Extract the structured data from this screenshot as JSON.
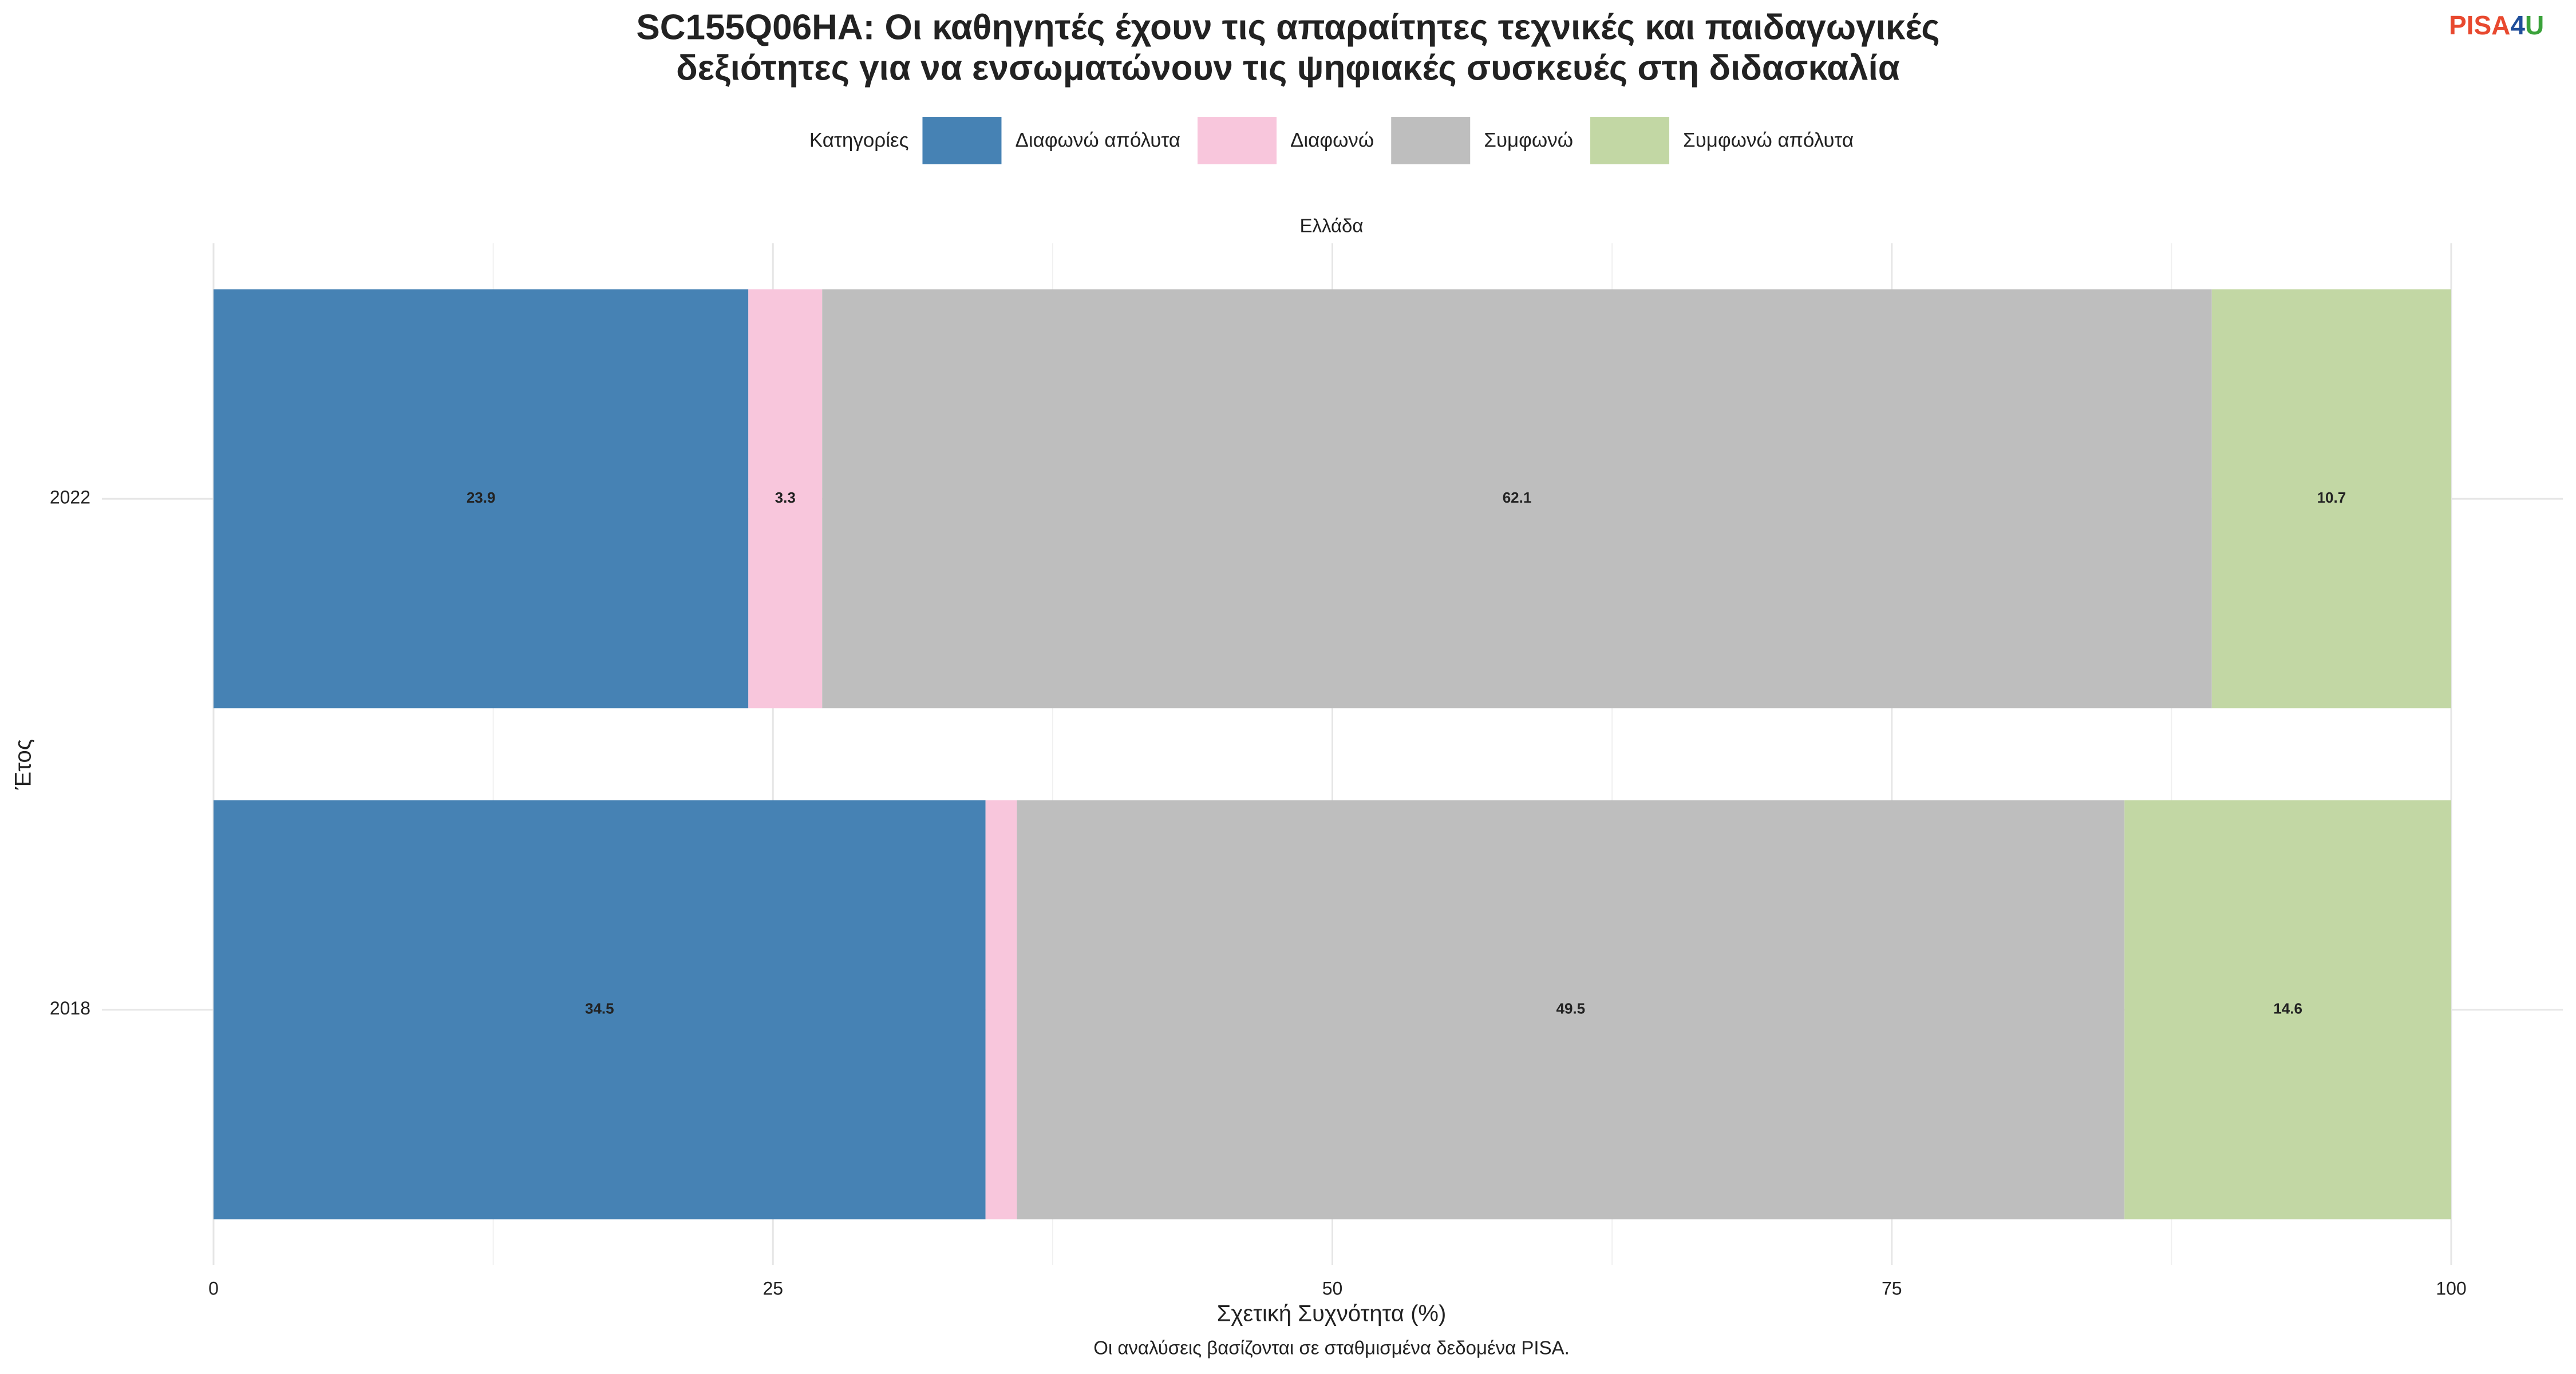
{
  "chart_data": {
    "type": "stacked-bar-horizontal",
    "title": [
      "SC155Q06HA: Οι καθηγητές έχουν τις απαραίτητες τεχνικές και παιδαγωγικές",
      "δεξιότητες για να ενσωματώνουν τις ψηφιακές συσκευές στη διδασκαλία"
    ],
    "legend_title": "Κατηγορίες",
    "facet_label": "Ελλάδα",
    "x_label": "Σχετική Συχνότητα (%)",
    "y_label": "Έτος",
    "caption": "Οι αναλύσεις βασίζονται σε σταθμισμένα δεδομένα PISA.",
    "categories": [
      "2022",
      "2018"
    ],
    "series": [
      {
        "name": "Διαφωνώ απόλυτα",
        "color": "#4682b4",
        "values": [
          23.9,
          34.5
        ]
      },
      {
        "name": "Διαφωνώ",
        "color": "#f8c6dc",
        "values": [
          3.3,
          1.4
        ]
      },
      {
        "name": "Συμφωνώ",
        "color": "#bebebe",
        "values": [
          62.1,
          49.5
        ]
      },
      {
        "name": "Συμφωνώ απόλυτα",
        "color": "#c2d7a4",
        "values": [
          10.7,
          14.6
        ]
      }
    ],
    "xlim": [
      0,
      100
    ],
    "xticks": [
      0,
      25,
      50,
      75,
      100
    ],
    "grid": true,
    "legend": "top"
  },
  "logo": [
    "PISA",
    "4",
    "U"
  ]
}
